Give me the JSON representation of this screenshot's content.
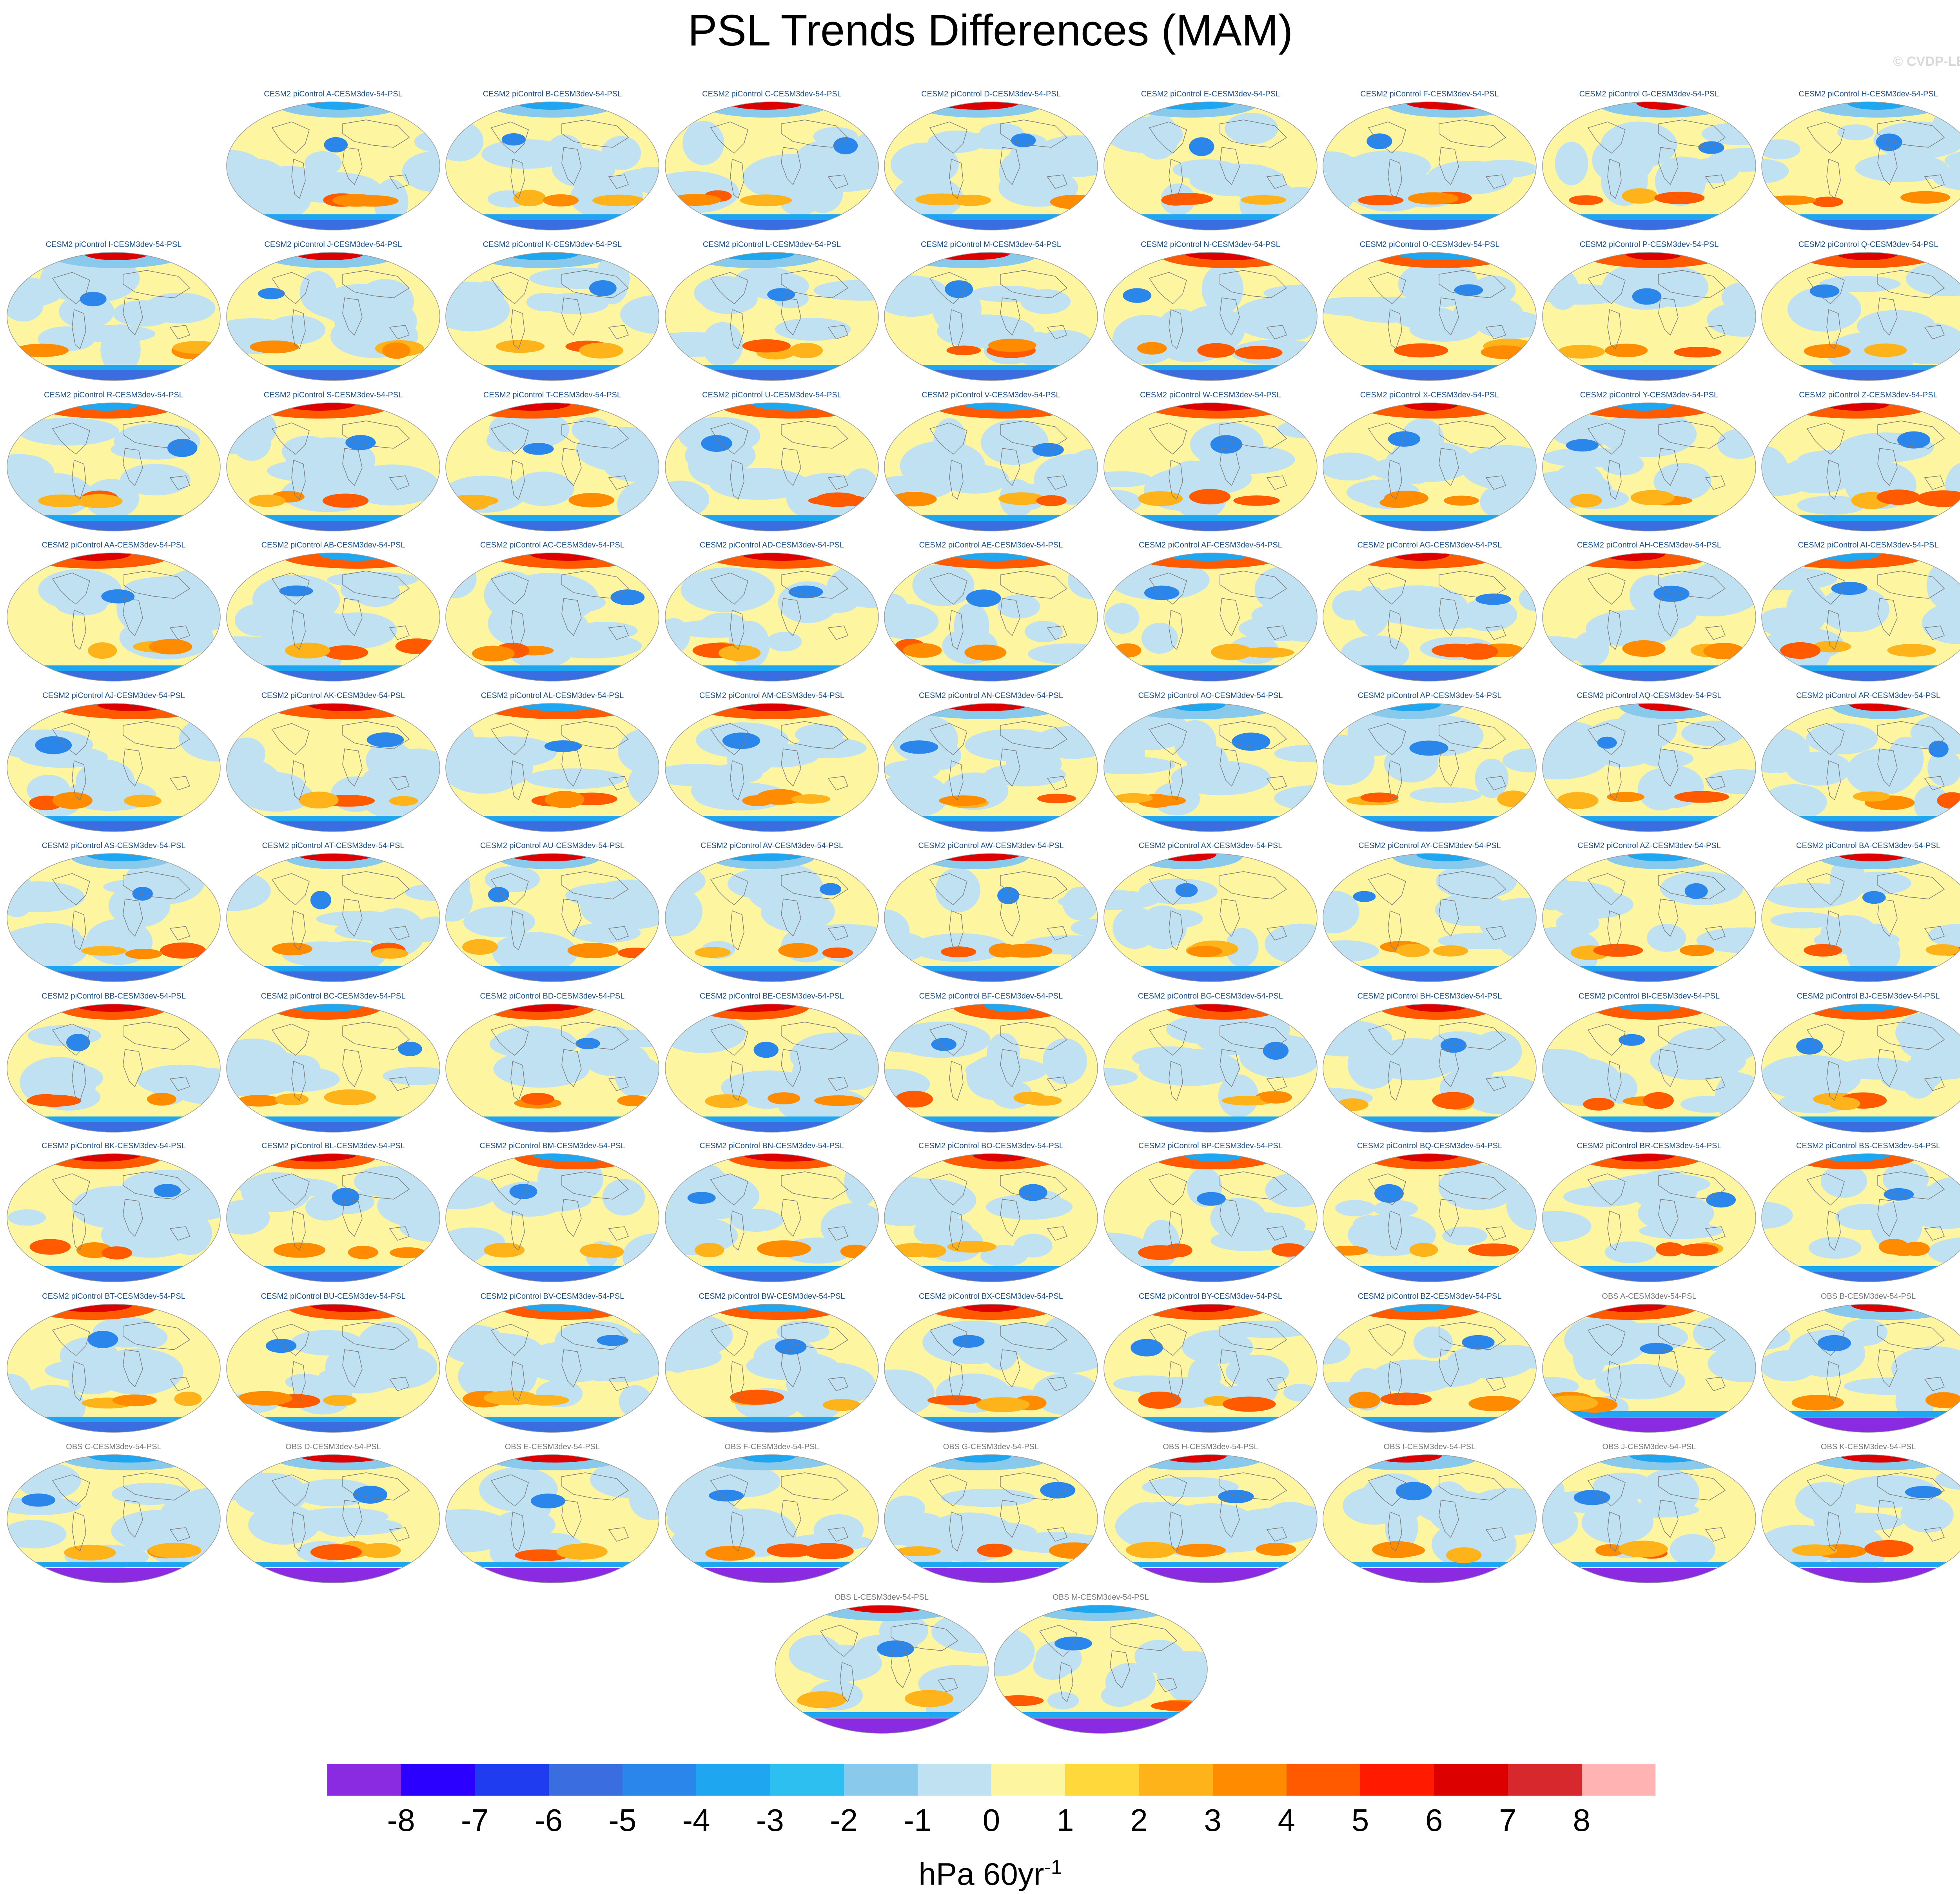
{
  "title": "PSL Trends Differences (MAM)",
  "credit": "© CVDP-LE",
  "chart_data": {
    "type": "heatmap",
    "panels": [
      "CESM2 piControl A-CESM3dev-54-PSL",
      "CESM2 piControl B-CESM3dev-54-PSL",
      "CESM2 piControl C-CESM3dev-54-PSL",
      "CESM2 piControl D-CESM3dev-54-PSL",
      "CESM2 piControl E-CESM3dev-54-PSL",
      "CESM2 piControl F-CESM3dev-54-PSL",
      "CESM2 piControl G-CESM3dev-54-PSL",
      "CESM2 piControl H-CESM3dev-54-PSL",
      "CESM2 piControl I-CESM3dev-54-PSL",
      "CESM2 piControl J-CESM3dev-54-PSL",
      "CESM2 piControl K-CESM3dev-54-PSL",
      "CESM2 piControl L-CESM3dev-54-PSL",
      "CESM2 piControl M-CESM3dev-54-PSL",
      "CESM2 piControl N-CESM3dev-54-PSL",
      "CESM2 piControl O-CESM3dev-54-PSL",
      "CESM2 piControl P-CESM3dev-54-PSL",
      "CESM2 piControl Q-CESM3dev-54-PSL",
      "CESM2 piControl R-CESM3dev-54-PSL",
      "CESM2 piControl S-CESM3dev-54-PSL",
      "CESM2 piControl T-CESM3dev-54-PSL",
      "CESM2 piControl U-CESM3dev-54-PSL",
      "CESM2 piControl V-CESM3dev-54-PSL",
      "CESM2 piControl W-CESM3dev-54-PSL",
      "CESM2 piControl X-CESM3dev-54-PSL",
      "CESM2 piControl Y-CESM3dev-54-PSL",
      "CESM2 piControl Z-CESM3dev-54-PSL",
      "CESM2 piControl AA-CESM3dev-54-PSL",
      "CESM2 piControl AB-CESM3dev-54-PSL",
      "CESM2 piControl AC-CESM3dev-54-PSL",
      "CESM2 piControl AD-CESM3dev-54-PSL",
      "CESM2 piControl AE-CESM3dev-54-PSL",
      "CESM2 piControl AF-CESM3dev-54-PSL",
      "CESM2 piControl AG-CESM3dev-54-PSL",
      "CESM2 piControl AH-CESM3dev-54-PSL",
      "CESM2 piControl AI-CESM3dev-54-PSL",
      "CESM2 piControl AJ-CESM3dev-54-PSL",
      "CESM2 piControl AK-CESM3dev-54-PSL",
      "CESM2 piControl AL-CESM3dev-54-PSL",
      "CESM2 piControl AM-CESM3dev-54-PSL",
      "CESM2 piControl AN-CESM3dev-54-PSL",
      "CESM2 piControl AO-CESM3dev-54-PSL",
      "CESM2 piControl AP-CESM3dev-54-PSL",
      "CESM2 piControl AQ-CESM3dev-54-PSL",
      "CESM2 piControl AR-CESM3dev-54-PSL",
      "CESM2 piControl AS-CESM3dev-54-PSL",
      "CESM2 piControl AT-CESM3dev-54-PSL",
      "CESM2 piControl AU-CESM3dev-54-PSL",
      "CESM2 piControl AV-CESM3dev-54-PSL",
      "CESM2 piControl AW-CESM3dev-54-PSL",
      "CESM2 piControl AX-CESM3dev-54-PSL",
      "CESM2 piControl AY-CESM3dev-54-PSL",
      "CESM2 piControl AZ-CESM3dev-54-PSL",
      "CESM2 piControl BA-CESM3dev-54-PSL",
      "CESM2 piControl BB-CESM3dev-54-PSL",
      "CESM2 piControl BC-CESM3dev-54-PSL",
      "CESM2 piControl BD-CESM3dev-54-PSL",
      "CESM2 piControl BE-CESM3dev-54-PSL",
      "CESM2 piControl BF-CESM3dev-54-PSL",
      "CESM2 piControl BG-CESM3dev-54-PSL",
      "CESM2 piControl BH-CESM3dev-54-PSL",
      "CESM2 piControl BI-CESM3dev-54-PSL",
      "CESM2 piControl BJ-CESM3dev-54-PSL",
      "CESM2 piControl BK-CESM3dev-54-PSL",
      "CESM2 piControl BL-CESM3dev-54-PSL",
      "CESM2 piControl BM-CESM3dev-54-PSL",
      "CESM2 piControl BN-CESM3dev-54-PSL",
      "CESM2 piControl BO-CESM3dev-54-PSL",
      "CESM2 piControl BP-CESM3dev-54-PSL",
      "CESM2 piControl BQ-CESM3dev-54-PSL",
      "CESM2 piControl BR-CESM3dev-54-PSL",
      "CESM2 piControl BS-CESM3dev-54-PSL",
      "CESM2 piControl BT-CESM3dev-54-PSL",
      "CESM2 piControl BU-CESM3dev-54-PSL",
      "CESM2 piControl BV-CESM3dev-54-PSL",
      "CESM2 piControl BW-CESM3dev-54-PSL",
      "CESM2 piControl BX-CESM3dev-54-PSL",
      "CESM2 piControl BY-CESM3dev-54-PSL",
      "CESM2 piControl BZ-CESM3dev-54-PSL",
      "OBS A-CESM3dev-54-PSL",
      "OBS B-CESM3dev-54-PSL",
      "OBS C-CESM3dev-54-PSL",
      "OBS D-CESM3dev-54-PSL",
      "OBS E-CESM3dev-54-PSL",
      "OBS F-CESM3dev-54-PSL",
      "OBS G-CESM3dev-54-PSL",
      "OBS H-CESM3dev-54-PSL",
      "OBS I-CESM3dev-54-PSL",
      "OBS J-CESM3dev-54-PSL",
      "OBS K-CESM3dev-54-PSL",
      "OBS L-CESM3dev-54-PSL",
      "OBS M-CESM3dev-54-PSL"
    ],
    "colorbar": {
      "ticks": [
        "-8",
        "-7",
        "-6",
        "-5",
        "-4",
        "-3",
        "-2",
        "-1",
        "0",
        "1",
        "2",
        "3",
        "4",
        "5",
        "6",
        "7",
        "8"
      ],
      "colors": [
        "#8a2be2",
        "#2b00ff",
        "#1f3cf0",
        "#3a6de0",
        "#2b86ec",
        "#1ea6f0",
        "#2cbff0",
        "#88c9ec",
        "#bfe1f2",
        "#fdf5a0",
        "#ffd93b",
        "#ffb31a",
        "#ff8c00",
        "#ff5a00",
        "#ff1a00",
        "#dd0000",
        "#d7282e",
        "#ffb3b3"
      ],
      "unit_base": "hPa 60yr",
      "unit_exp": "-1"
    }
  }
}
